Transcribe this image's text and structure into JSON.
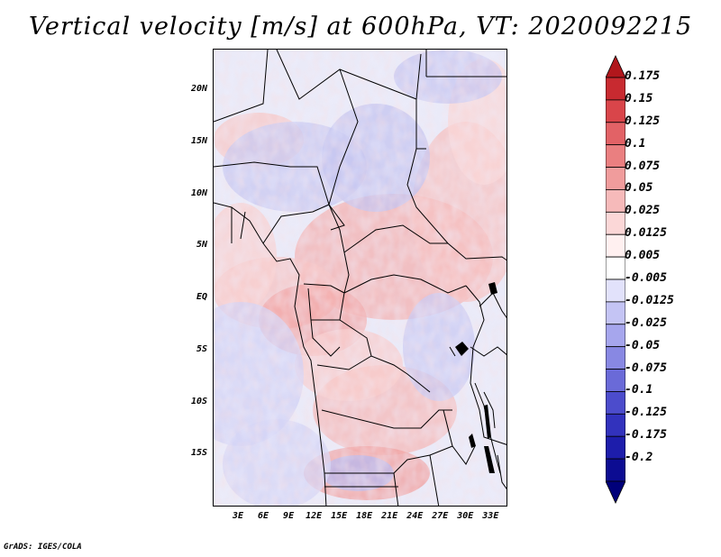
{
  "title": "Vertical velocity [m/s] at 600hPa, VT: 2020092215",
  "footer": "GrADS: IGES/COLA",
  "map": {
    "lat_range": [
      -20,
      24
    ],
    "lon_range": [
      0,
      35
    ],
    "lat_labels": [
      "20N",
      "15N",
      "10N",
      "5N",
      "EQ",
      "5S",
      "10S",
      "15S"
    ],
    "lat_values": [
      20,
      15,
      10,
      5,
      0,
      -5,
      -10,
      -15
    ],
    "lon_labels": [
      "3E",
      "6E",
      "9E",
      "12E",
      "15E",
      "18E",
      "21E",
      "24E",
      "27E",
      "30E",
      "33E"
    ],
    "lon_values": [
      3,
      6,
      9,
      12,
      15,
      18,
      21,
      24,
      27,
      30,
      33
    ]
  },
  "colorbar": {
    "labels": [
      "0.175",
      "0.15",
      "0.125",
      "0.1",
      "0.075",
      "0.05",
      "0.025",
      "0.0125",
      "0.005",
      "-0.005",
      "-0.0125",
      "-0.025",
      "-0.05",
      "-0.075",
      "-0.1",
      "-0.125",
      "-0.175",
      "-0.2"
    ],
    "colors": [
      "#b1171c",
      "#c82a30",
      "#d9454a",
      "#e26266",
      "#ea7f80",
      "#f09c9c",
      "#f6baba",
      "#fbd7d7",
      "#fff0f0",
      "#ffffff",
      "#e2e2fb",
      "#c4c4f4",
      "#a6a6ed",
      "#8888e3",
      "#6a6ad8",
      "#4c4ccc",
      "#3232bd",
      "#1d1dab",
      "#0c0c92",
      "#00007a"
    ]
  }
}
